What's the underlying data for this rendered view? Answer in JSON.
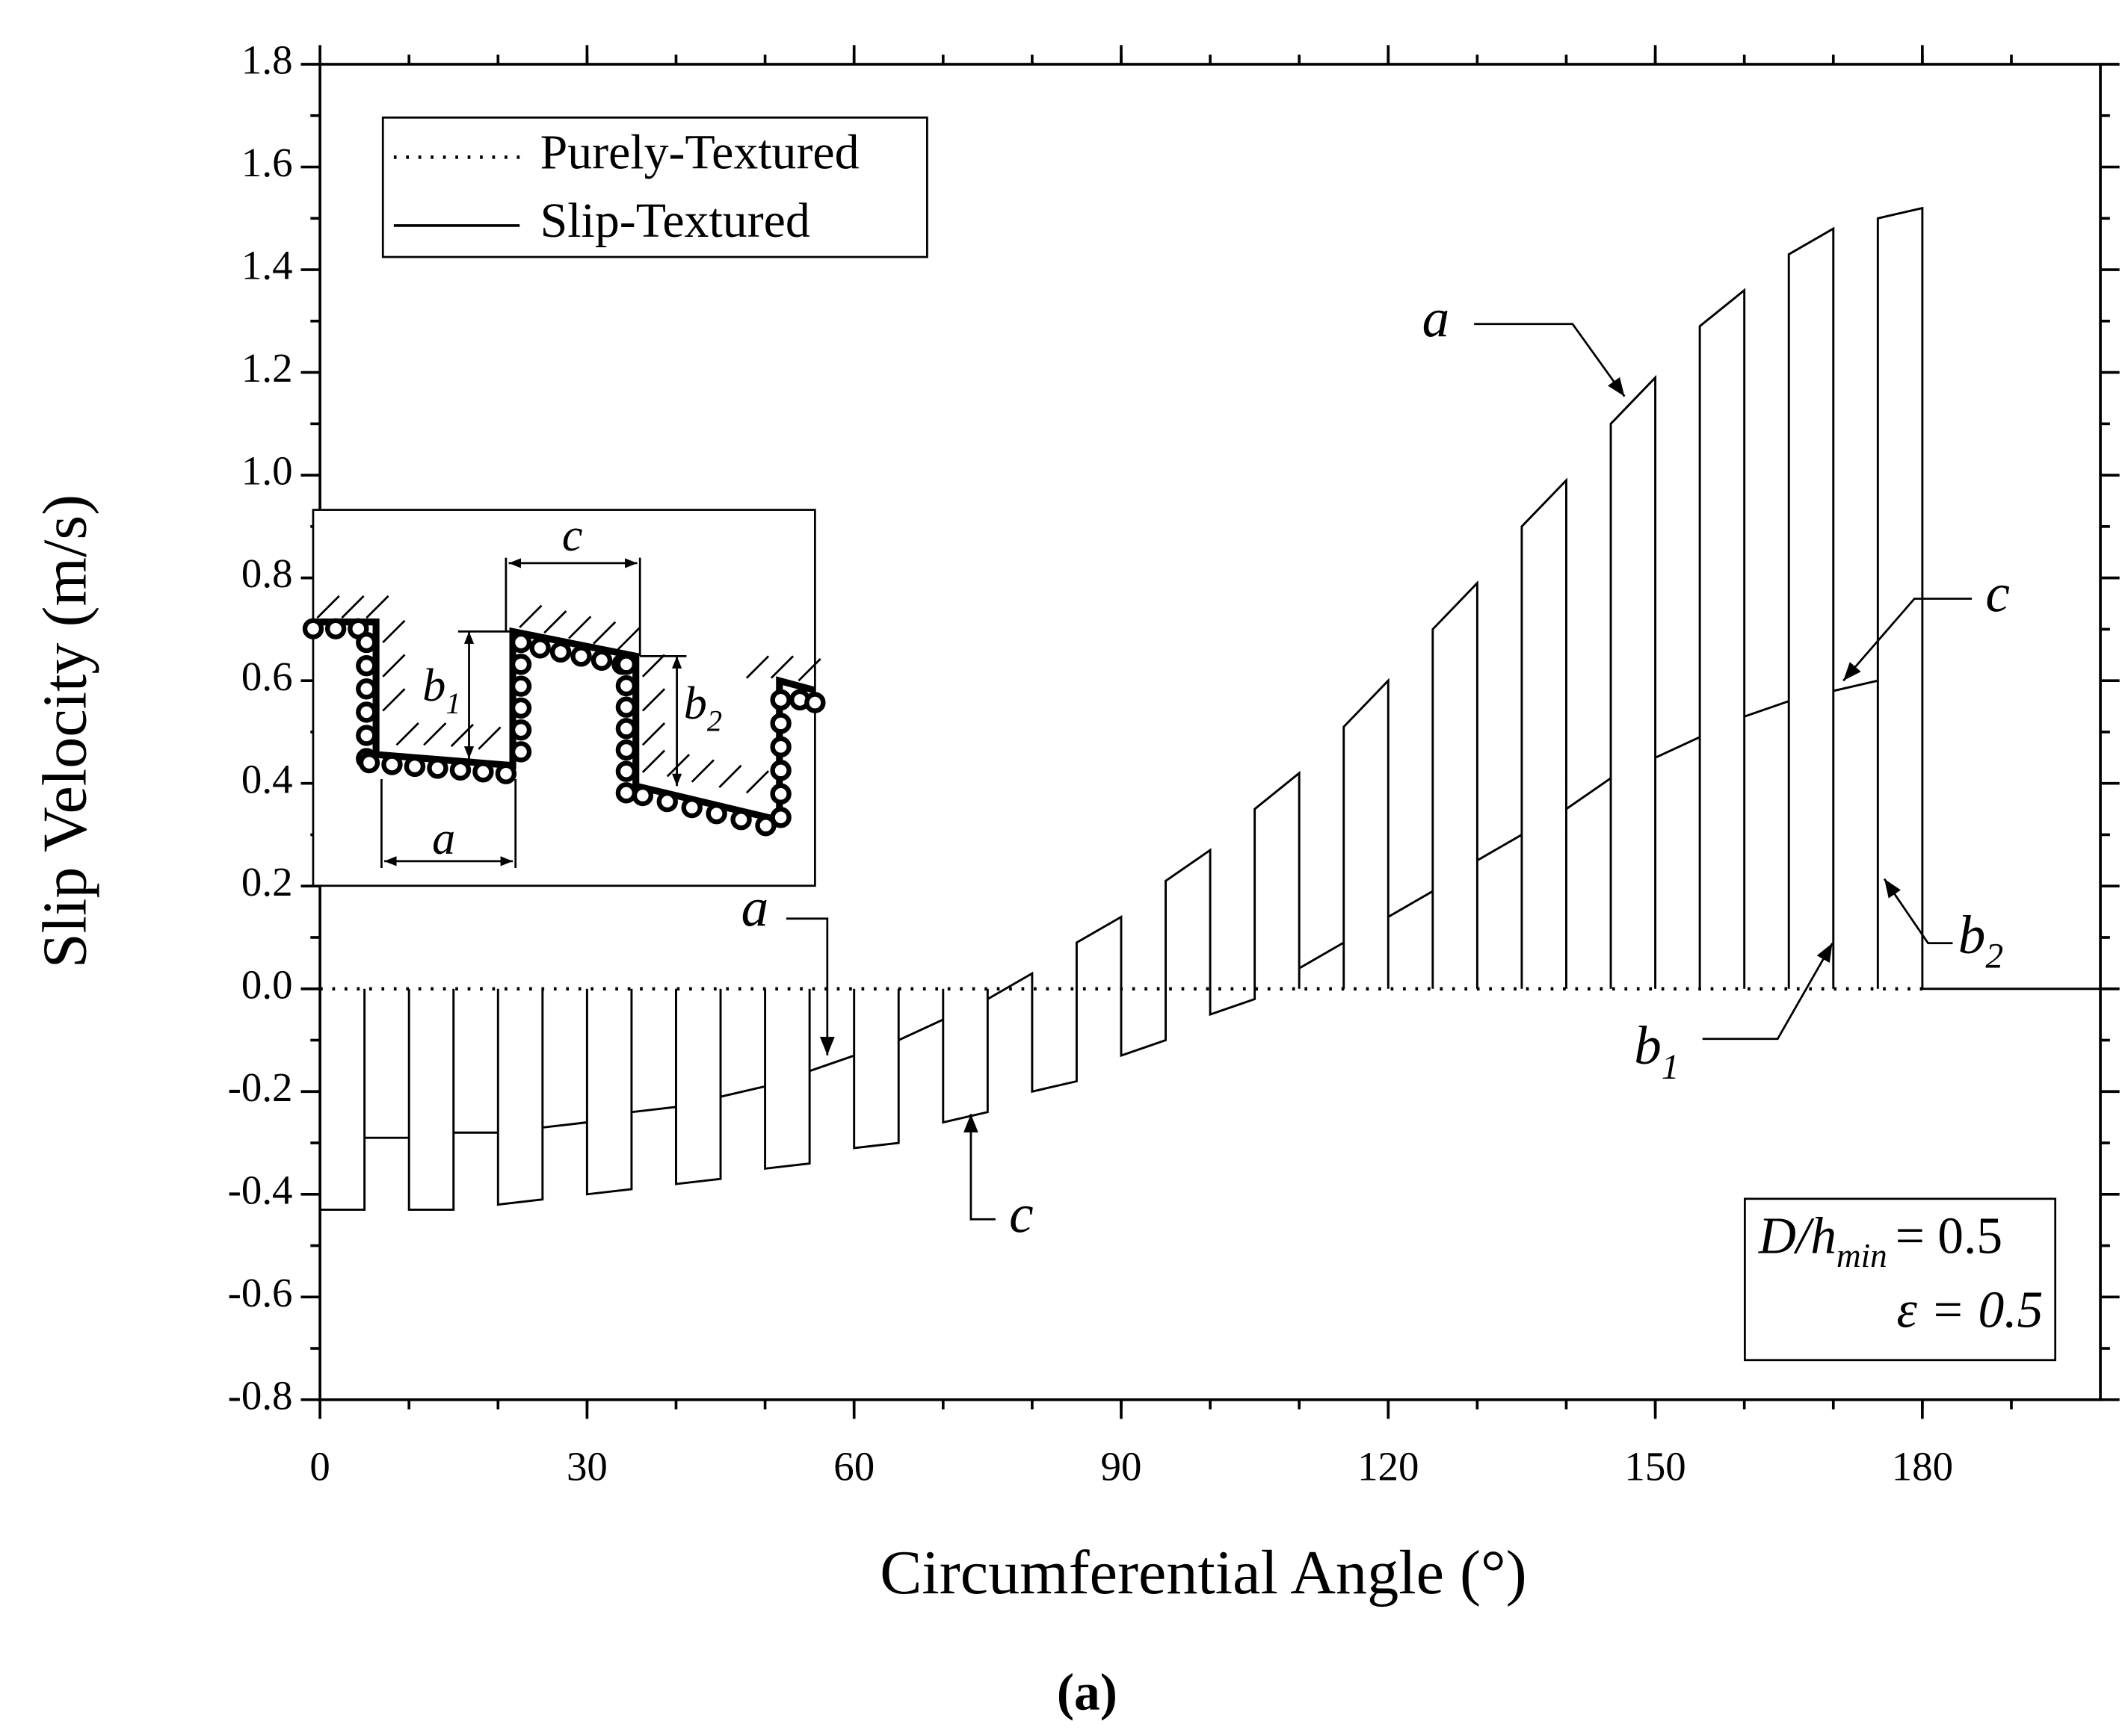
{
  "chart_data": {
    "type": "line",
    "xlabel": "Circumferential Angle (°)",
    "ylabel": "Slip Velocity (m/s)",
    "caption": "(a)",
    "xlim": [
      0,
      200
    ],
    "xticks": [
      0,
      30,
      60,
      90,
      120,
      150,
      180
    ],
    "ylim": [
      -0.8,
      1.8
    ],
    "yticks": [
      -0.8,
      -0.6,
      -0.4,
      -0.2,
      {
        "value": 0,
        "label": "0.0"
      },
      0.2,
      0.4,
      0.6,
      0.8,
      {
        "value": 1,
        "label": "1.0"
      },
      1.2,
      1.4,
      1.6,
      1.8
    ],
    "legend": "upper left",
    "series": [
      {
        "name": "Purely-Textured",
        "color": "#000000",
        "line_style": "dotted",
        "x": [
          0,
          180
        ],
        "values": [
          0,
          0
        ]
      },
      {
        "name": "Slip-Textured",
        "color": "#000000",
        "line_style": "solid",
        "x": [
          0,
          0,
          5,
          5,
          5,
          5,
          10,
          10,
          10,
          10,
          15,
          15,
          15,
          15,
          20,
          20,
          20,
          20,
          25,
          25,
          25,
          25,
          30,
          30,
          30,
          30,
          35,
          35,
          35,
          35,
          40,
          40,
          40,
          40,
          45,
          45,
          45,
          45,
          50,
          50,
          50,
          50,
          55,
          55,
          55,
          55,
          60,
          60,
          60,
          60,
          65,
          65,
          65,
          65,
          70,
          70,
          70,
          70,
          75,
          75,
          75,
          75,
          80,
          80,
          80,
          80,
          85,
          85,
          85,
          85,
          90,
          90,
          90,
          90,
          95,
          95,
          95,
          95,
          100,
          100,
          100,
          100,
          105,
          105,
          105,
          105,
          110,
          110,
          110,
          110,
          115,
          115,
          115,
          115,
          120,
          120,
          120,
          120,
          125,
          125,
          125,
          125,
          130,
          130,
          130,
          130,
          135,
          135,
          135,
          135,
          140,
          140,
          140,
          140,
          145,
          145,
          145,
          145,
          150,
          150,
          150,
          150,
          155,
          155,
          155,
          155,
          160,
          160,
          160,
          160,
          165,
          165,
          165,
          165,
          170,
          170,
          170,
          170,
          175,
          175,
          175,
          175,
          180,
          180,
          200
        ],
        "values": [
          0,
          -0.43,
          -0.43,
          0,
          0,
          -0.29,
          -0.29,
          0,
          0,
          -0.43,
          -0.43,
          0,
          0,
          -0.28,
          -0.28,
          0,
          0,
          -0.42,
          -0.41,
          0,
          0,
          -0.27,
          -0.26,
          0,
          0,
          -0.4,
          -0.39,
          0,
          0,
          -0.24,
          -0.23,
          0,
          0,
          -0.38,
          -0.37,
          0,
          0,
          -0.21,
          -0.19,
          0,
          0,
          -0.35,
          -0.34,
          0,
          0,
          -0.16,
          -0.13,
          0,
          0,
          -0.31,
          -0.3,
          0,
          0,
          -0.1,
          -0.06,
          0,
          0,
          -0.26,
          -0.24,
          0,
          0,
          -0.02,
          0.03,
          0,
          0,
          -0.2,
          -0.18,
          0,
          0,
          0.09,
          0.14,
          0,
          0,
          -0.13,
          -0.1,
          0,
          0,
          0.21,
          0.27,
          0,
          0,
          -0.05,
          -0.02,
          0,
          0,
          0.35,
          0.42,
          0,
          0,
          0.04,
          0.09,
          0,
          0,
          0.51,
          0.6,
          0,
          0,
          0.14,
          0.19,
          0,
          0,
          0.7,
          0.79,
          0,
          0,
          0.25,
          0.3,
          0,
          0,
          0.9,
          0.99,
          0,
          0,
          0.35,
          0.41,
          0,
          0,
          1.1,
          1.19,
          0,
          0,
          0.45,
          0.49,
          0,
          0,
          1.29,
          1.36,
          0,
          0,
          0.53,
          0.56,
          0,
          0,
          1.43,
          1.48,
          0,
          0,
          0.58,
          0.6,
          0,
          0,
          1.5,
          1.52,
          0,
          0
        ]
      }
    ],
    "annotations": [
      {
        "text": "a"
      },
      {
        "text": "c"
      },
      {
        "text": "a"
      },
      {
        "text": "c"
      },
      {
        "text": "b",
        "sub": "1"
      },
      {
        "text": "b",
        "sub": "2"
      }
    ],
    "param_box": [
      {
        "text": "D/h",
        "sub": "min",
        "rest": "= 0.5"
      },
      {
        "text": "ε = 0.5"
      }
    ],
    "inset_labels": [
      {
        "text": "c"
      },
      {
        "text": "b",
        "sub": "1"
      },
      {
        "text": "b",
        "sub": "2"
      },
      {
        "text": "a"
      }
    ]
  }
}
